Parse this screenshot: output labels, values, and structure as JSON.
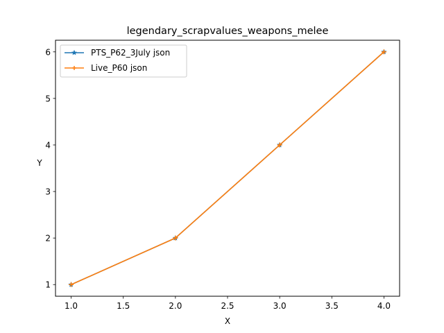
{
  "chart_data": {
    "type": "line",
    "title": "legendary_scrapvalues_weapons_melee",
    "xlabel": "X",
    "ylabel": "Y",
    "xlim": [
      0.85,
      4.15
    ],
    "ylim": [
      0.75,
      6.25
    ],
    "xticks": [
      1.0,
      1.5,
      2.0,
      2.5,
      3.0,
      3.5,
      4.0
    ],
    "xtick_labels": [
      "1.0",
      "1.5",
      "2.0",
      "2.5",
      "3.0",
      "3.5",
      "4.0"
    ],
    "yticks": [
      1,
      2,
      3,
      4,
      5,
      6
    ],
    "ytick_labels": [
      "1",
      "2",
      "3",
      "4",
      "5",
      "6"
    ],
    "grid": false,
    "legend_position": "upper-left",
    "series": [
      {
        "name": "PTS_P62_3July json",
        "color": "#1f77b4",
        "marker": "star",
        "x": [
          1,
          2,
          3,
          4
        ],
        "y": [
          1,
          2,
          4,
          6
        ]
      },
      {
        "name": "Live_P60 json",
        "color": "#ff7f0e",
        "marker": "plus",
        "x": [
          1,
          2,
          3,
          4
        ],
        "y": [
          1,
          2,
          4,
          6
        ]
      }
    ]
  }
}
